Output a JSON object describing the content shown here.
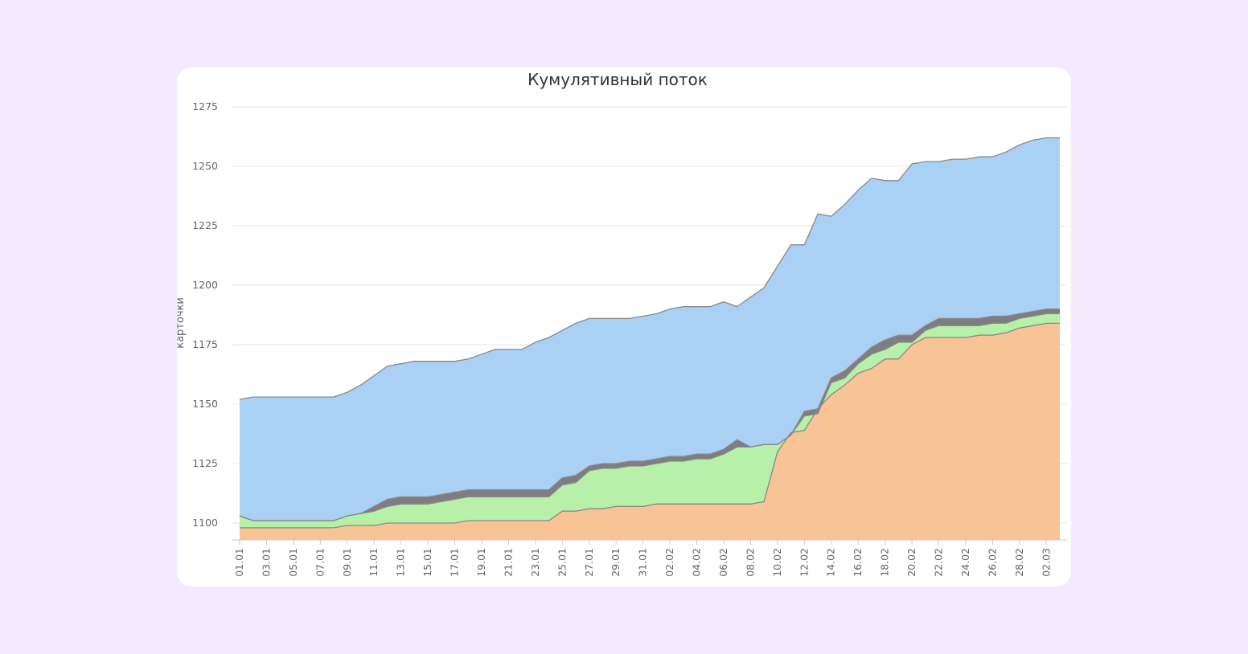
{
  "chart_data": {
    "type": "area",
    "stacked": true,
    "title": "Кумулятивный поток",
    "xlabel": "",
    "ylabel": "карточки",
    "ylim": [
      1094,
      1275
    ],
    "yticks": [
      1100,
      1125,
      1150,
      1175,
      1200,
      1225,
      1250,
      1275
    ],
    "x_tick_labels": [
      "01.01",
      "03.01",
      "05.01",
      "07.01",
      "09.01",
      "11.01",
      "13.01",
      "15.01",
      "17.01",
      "19.01",
      "21.01",
      "23.01",
      "25.01",
      "27.01",
      "29.01",
      "31.01",
      "02.02",
      "04.02",
      "06.02",
      "08.02",
      "10.02",
      "12.02",
      "14.02",
      "16.02",
      "18.02",
      "20.02",
      "22.02",
      "24.02",
      "26.02",
      "28.02",
      "02.03"
    ],
    "x_tick_every": 2,
    "legend": "none",
    "grid": true,
    "colors": {
      "series_orange": "#f8c496",
      "series_green": "#b7f0a8",
      "series_gray": "#7d7d82",
      "series_blue": "#aad0f3",
      "line": "#8a8a8a",
      "grid": "#e6e6e6"
    },
    "series": [
      {
        "cumulative": [
          1098,
          1098,
          1098,
          1098,
          1098,
          1098,
          1098,
          1098,
          1099,
          1099,
          1099,
          1100,
          1100,
          1100,
          1100,
          1100,
          1100,
          1101,
          1101,
          1101,
          1101,
          1101,
          1101,
          1101,
          1105,
          1105,
          1106,
          1106,
          1107,
          1107,
          1107,
          1108,
          1108,
          1108,
          1108,
          1108,
          1108,
          1108,
          1108,
          1109,
          1130,
          1138,
          1139,
          1148,
          1154,
          1158,
          1163,
          1165,
          1169,
          1169,
          1175,
          1178,
          1178,
          1178,
          1178,
          1179,
          1179,
          1180,
          1182,
          1183,
          1184,
          1184
        ]
      },
      {
        "cumulative": [
          1103,
          1101,
          1101,
          1101,
          1101,
          1101,
          1101,
          1101,
          1103,
          1104,
          1105,
          1107,
          1108,
          1108,
          1108,
          1109,
          1110,
          1111,
          1111,
          1111,
          1111,
          1111,
          1111,
          1111,
          1116,
          1117,
          1122,
          1123,
          1123,
          1124,
          1124,
          1125,
          1126,
          1126,
          1127,
          1127,
          1129,
          1132,
          1132,
          1133,
          1133,
          1137,
          1145,
          1146,
          1159,
          1161,
          1167,
          1171,
          1173,
          1176,
          1176,
          1181,
          1183,
          1183,
          1183,
          1183,
          1184,
          1184,
          1186,
          1187,
          1188,
          1188
        ]
      },
      {
        "cumulative": [
          1103,
          1101,
          1101,
          1101,
          1101,
          1101,
          1101,
          1101,
          1103,
          1104,
          1107,
          1110,
          1111,
          1111,
          1111,
          1112,
          1113,
          1114,
          1114,
          1114,
          1114,
          1114,
          1114,
          1114,
          1119,
          1120,
          1124,
          1125,
          1125,
          1126,
          1126,
          1127,
          1128,
          1128,
          1129,
          1129,
          1131,
          1135,
          1132,
          1133,
          1133,
          1137,
          1147,
          1148,
          1161,
          1164,
          1169,
          1174,
          1177,
          1179,
          1179,
          1183,
          1186,
          1186,
          1186,
          1186,
          1187,
          1187,
          1188,
          1189,
          1190,
          1190
        ]
      },
      {
        "cumulative": [
          1152,
          1153,
          1153,
          1153,
          1153,
          1153,
          1153,
          1153,
          1155,
          1158,
          1162,
          1166,
          1167,
          1168,
          1168,
          1168,
          1168,
          1169,
          1171,
          1173,
          1173,
          1173,
          1176,
          1178,
          1181,
          1184,
          1186,
          1186,
          1186,
          1186,
          1187,
          1188,
          1190,
          1191,
          1191,
          1191,
          1193,
          1191,
          1195,
          1199,
          1208,
          1217,
          1217,
          1230,
          1229,
          1234,
          1240,
          1245,
          1244,
          1244,
          1251,
          1252,
          1252,
          1253,
          1253,
          1254,
          1254,
          1256,
          1259,
          1261,
          1262,
          1262
        ]
      }
    ]
  }
}
